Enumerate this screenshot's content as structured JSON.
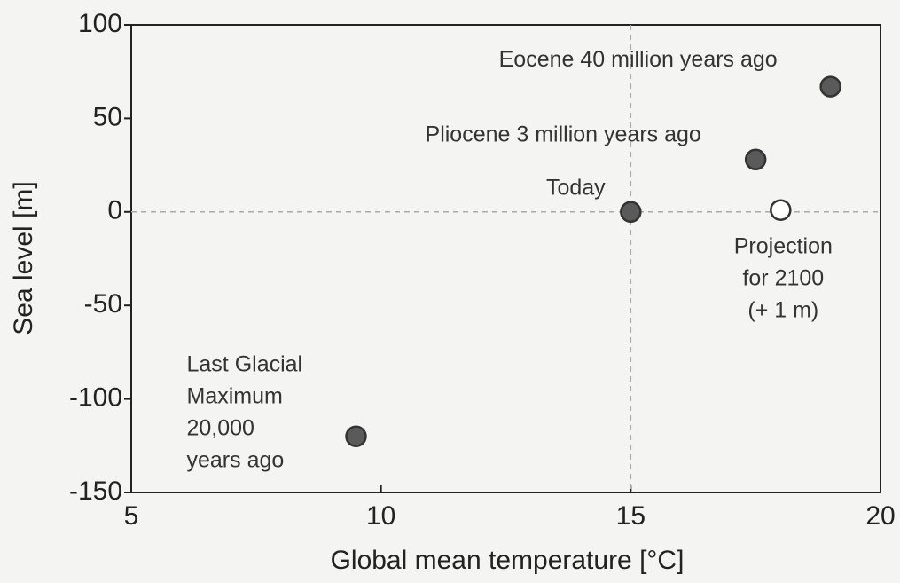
{
  "chart_data": {
    "type": "scatter",
    "xlabel": "Global mean temperature [°C]",
    "ylabel": "Sea level [m]",
    "xlim": [
      5,
      20
    ],
    "xticks": [
      5,
      10,
      15,
      20
    ],
    "ylim": [
      -150,
      100
    ],
    "yticks": [
      -150,
      -100,
      -50,
      0,
      50,
      100
    ],
    "reference_lines": {
      "x": 15,
      "y": 0
    },
    "series": [
      {
        "color": "#5a5a5a",
        "filled": true,
        "x": [
          9.5,
          15,
          17.5,
          19
        ],
        "values": [
          -120,
          0,
          28,
          67
        ],
        "annotations": [
          [
            "Last Glacial",
            "Maximum",
            "20,000",
            "years ago"
          ],
          [
            "Today"
          ],
          [
            "Pliocene 3 million years ago"
          ],
          [
            "Eocene 40 million years ago"
          ]
        ]
      },
      {
        "color": "#333333",
        "filled": false,
        "x": [
          18
        ],
        "values": [
          1
        ],
        "annotations": [
          [
            "Projection",
            "for 2100",
            "(+ 1 m)"
          ]
        ]
      }
    ]
  }
}
